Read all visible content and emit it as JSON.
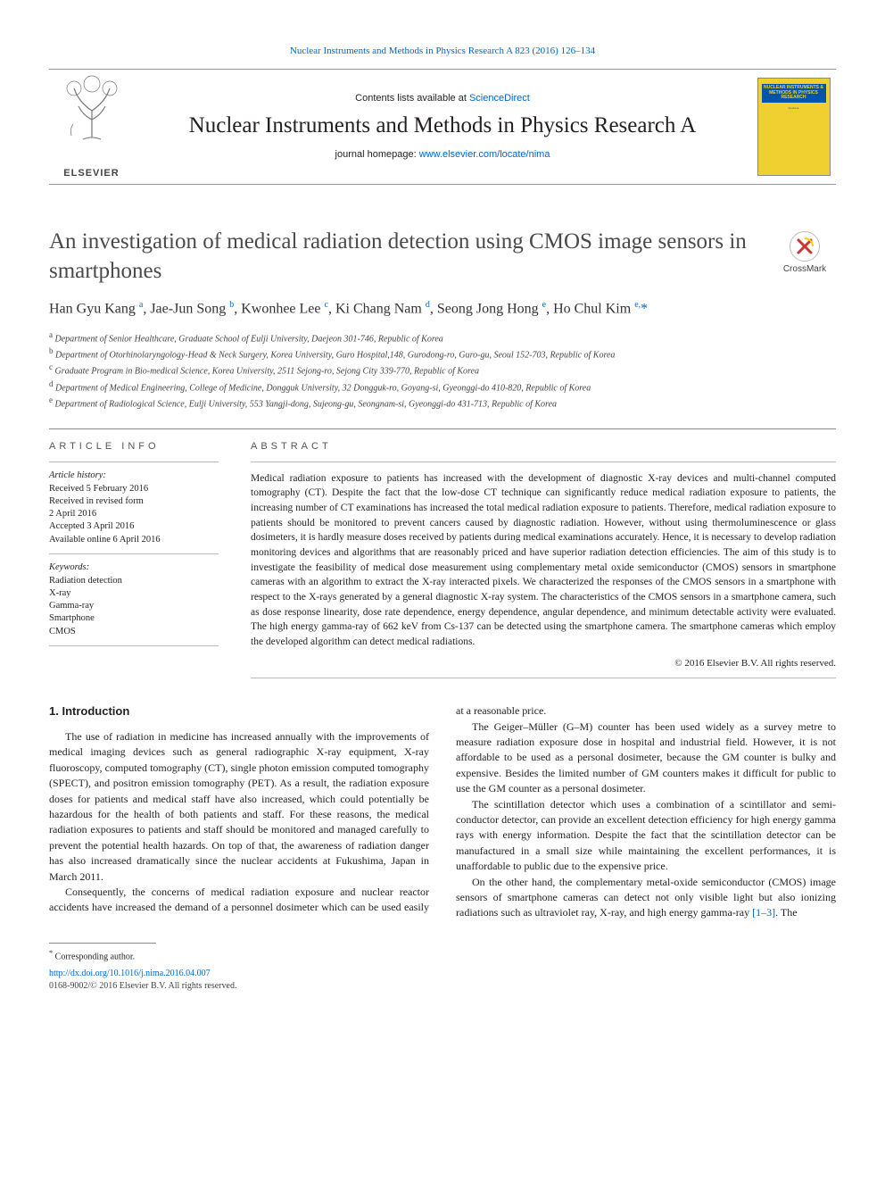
{
  "citation": "Nuclear Instruments and Methods in Physics Research A 823 (2016) 126–134",
  "banner": {
    "contents_prefix": "Contents lists available at ",
    "contents_link": "ScienceDirect",
    "journal_name": "Nuclear Instruments and Methods in Physics Research A",
    "homepage_prefix": "journal homepage: ",
    "homepage_link": "www.elsevier.com/locate/nima",
    "publisher": "ELSEVIER",
    "cover_title": "NUCLEAR INSTRUMENTS & METHODS IN PHYSICS RESEARCH"
  },
  "crossmark": "CrossMark",
  "title": "An investigation of medical radiation detection using CMOS image sensors in smartphones",
  "authors_html": "Han Gyu Kang <sup>a</sup>, Jae-Jun Song <sup>b</sup>, Kwonhee Lee <sup>c</sup>, Ki Chang Nam <sup>d</sup>, Seong Jong Hong <sup>e</sup>, Ho Chul Kim <sup>e,</sup><span class='corr-star'>*</span>",
  "affiliations": [
    {
      "sup": "a",
      "text": "Department of Senior Healthcare, Graduate School of Eulji University, Daejeon 301-746, Republic of Korea"
    },
    {
      "sup": "b",
      "text": "Department of Otorhinolaryngology-Head & Neck Surgery, Korea University, Guro Hospital,148, Gurodong-ro, Guro-gu, Seoul 152-703, Republic of Korea"
    },
    {
      "sup": "c",
      "text": "Graduate Program in Bio-medical Science, Korea University, 2511 Sejong-ro, Sejong City 339-770, Republic of Korea"
    },
    {
      "sup": "d",
      "text": "Department of Medical Engineering, College of Medicine, Dongguk University, 32 Dongguk-ro, Goyang-si, Gyeonggi-do 410-820, Republic of Korea"
    },
    {
      "sup": "e",
      "text": "Department of Radiological Science, Eulji University, 553 Yangji-dong, Sujeong-gu, Seongnam-si, Gyeonggi-do 431-713, Republic of Korea"
    }
  ],
  "article_info_label": "ARTICLE INFO",
  "abstract_label": "ABSTRACT",
  "history_label": "Article history:",
  "history": [
    "Received 5 February 2016",
    "Received in revised form",
    "2 April 2016",
    "Accepted 3 April 2016",
    "Available online 6 April 2016"
  ],
  "keywords_label": "Keywords:",
  "keywords": [
    "Radiation detection",
    "X-ray",
    "Gamma-ray",
    "Smartphone",
    "CMOS"
  ],
  "abstract": "Medical radiation exposure to patients has increased with the development of diagnostic X-ray devices and multi-channel computed tomography (CT). Despite the fact that the low-dose CT technique can significantly reduce medical radiation exposure to patients, the increasing number of CT examinations has increased the total medical radiation exposure to patients. Therefore, medical radiation exposure to patients should be monitored to prevent cancers caused by diagnostic radiation. However, without using thermoluminescence or glass dosimeters, it is hardly measure doses received by patients during medical examinations accurately. Hence, it is necessary to develop radiation monitoring devices and algorithms that are reasonably priced and have superior radiation detection efficiencies. The aim of this study is to investigate the feasibility of medical dose measurement using complementary metal oxide semiconductor (CMOS) sensors in smartphone cameras with an algorithm to extract the X-ray interacted pixels. We characterized the responses of the CMOS sensors in a smartphone with respect to the X-rays generated by a general diagnostic X-ray system. The characteristics of the CMOS sensors in a smartphone camera, such as dose response linearity, dose rate dependence, energy dependence, angular dependence, and minimum detectable activity were evaluated. The high energy gamma-ray of 662 keV from Cs-137 can be detected using the smartphone camera. The smartphone cameras which employ the developed algorithm can detect medical radiations.",
  "copyright": "© 2016 Elsevier B.V. All rights reserved.",
  "intro_heading": "1. Introduction",
  "intro_paragraphs": [
    "The use of radiation in medicine has increased annually with the improvements of medical imaging devices such as general radiographic X-ray equipment, X-ray fluoroscopy, computed tomography (CT), single photon emission computed tomography (SPECT), and positron emission tomography (PET). As a result, the radiation exposure doses for patients and medical staff have also increased, which could potentially be hazardous for the health of both patients and staff. For these reasons, the medical radiation exposures to patients and staff should be monitored and managed carefully to prevent the potential health hazards. On top of that, the awareness of radiation danger has also increased dramatically since the nuclear accidents at Fukushima, Japan in March 2011.",
    "Consequently, the concerns of medical radiation exposure and nuclear reactor accidents have increased the demand of a personnel dosimeter which can be used easily at a reasonable price.",
    "The Geiger–Müller (G–M) counter has been used widely as a survey metre to measure radiation exposure dose in hospital and industrial field. However, it is not affordable to be used as a personal dosimeter, because the GM counter is bulky and expensive. Besides the limited number of GM counters makes it difficult for public to use the GM counter as a personal dosimeter.",
    "The scintillation detector which uses a combination of a scintillator and semi-conductor detector, can provide an excellent detection efficiency for high energy gamma rays with energy information. Despite the fact that the scintillation detector can be manufactured in a small size while maintaining the excellent performances, it is unaffordable to public due to the expensive price.",
    "On the other hand, the complementary metal-oxide semiconductor (CMOS) image sensors of smartphone cameras can detect not only visible light but also ionizing radiations such as ultraviolet ray, X-ray, and high energy gamma-ray [1–3]. The"
  ],
  "ref_link": "[1–3]",
  "footnote_marker": "*",
  "footnote_text": "Corresponding author.",
  "doi": "http://dx.doi.org/10.1016/j.nima.2016.04.007",
  "issn": "0168-9002/© 2016 Elsevier B.V. All rights reserved.",
  "colors": {
    "link": "#0066cc",
    "text": "#231f20",
    "cover_bg": "#f0d030",
    "cover_title_bg": "#0055aa"
  }
}
